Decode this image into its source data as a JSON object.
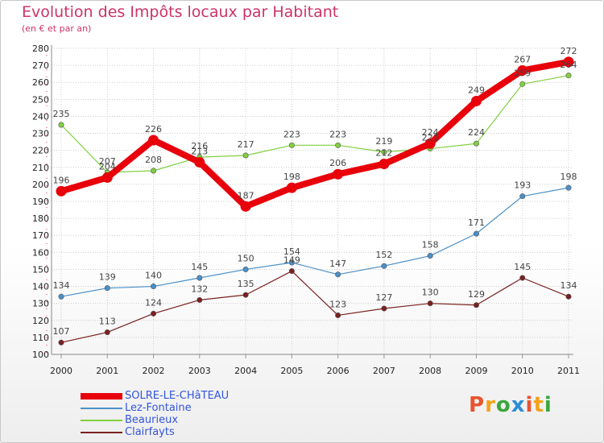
{
  "title": "Evolution des Impôts locaux par Habitant",
  "subtitle": "(en € et par an)",
  "logo": {
    "text": "Proxiti",
    "colors": [
      "#e8542e",
      "#f2a31b",
      "#3aa63a",
      "#2b8fd6",
      "#e8542e",
      "#f2a31b",
      "#3aa63a"
    ]
  },
  "chart_data": {
    "type": "line",
    "title": "Evolution des Impôts locaux par Habitant",
    "subtitle": "(en € et par an)",
    "xlabel": "",
    "ylabel": "",
    "x": [
      "2000",
      "2001",
      "2002",
      "2003",
      "2004",
      "2005",
      "2006",
      "2007",
      "2008",
      "2009",
      "2010",
      "2011"
    ],
    "ylim": [
      100,
      280
    ],
    "yticks": [
      100,
      110,
      120,
      130,
      140,
      150,
      160,
      170,
      180,
      190,
      200,
      210,
      220,
      230,
      240,
      250,
      260,
      270,
      280
    ],
    "grid": true,
    "legend_position": "bottom-left",
    "series": [
      {
        "name": "SOLRE-LE-CHâTEAU",
        "color": "#e8000b",
        "values": [
          196,
          204,
          226,
          213,
          187,
          198,
          206,
          212,
          224,
          249,
          267,
          272
        ]
      },
      {
        "name": "Lez-Fontaine",
        "color": "#4a90c8",
        "values": [
          134,
          139,
          140,
          145,
          150,
          154,
          147,
          152,
          158,
          171,
          193,
          198
        ]
      },
      {
        "name": "Beaurieux",
        "color": "#80d040",
        "values": [
          235,
          207,
          208,
          216,
          217,
          223,
          223,
          219,
          221,
          224,
          259,
          264
        ]
      },
      {
        "name": "Clairfayts",
        "color": "#7a2020",
        "values": [
          107,
          113,
          124,
          132,
          135,
          149,
          123,
          127,
          130,
          129,
          145,
          134
        ]
      }
    ]
  }
}
